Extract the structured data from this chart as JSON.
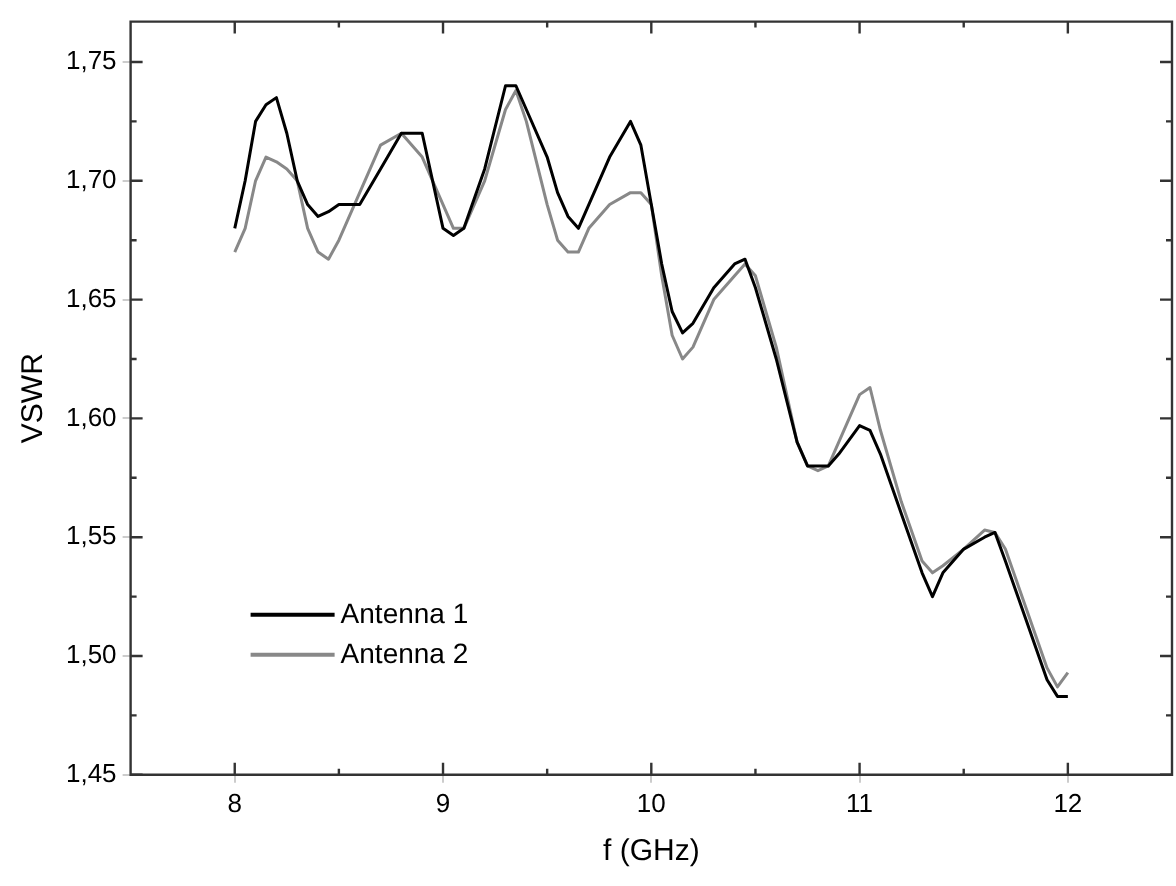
{
  "chart_data": {
    "type": "line",
    "xlabel": "f (GHz)",
    "ylabel": "VSWR",
    "x": [
      8.0,
      8.05,
      8.1,
      8.15,
      8.2,
      8.25,
      8.3,
      8.35,
      8.4,
      8.45,
      8.5,
      8.6,
      8.7,
      8.8,
      8.9,
      9.0,
      9.05,
      9.1,
      9.2,
      9.3,
      9.35,
      9.4,
      9.5,
      9.55,
      9.6,
      9.65,
      9.7,
      9.8,
      9.9,
      9.95,
      10.0,
      10.05,
      10.1,
      10.15,
      10.2,
      10.3,
      10.4,
      10.45,
      10.5,
      10.6,
      10.7,
      10.75,
      10.8,
      10.85,
      10.9,
      11.0,
      11.05,
      11.1,
      11.2,
      11.3,
      11.35,
      11.4,
      11.5,
      11.6,
      11.65,
      11.7,
      11.8,
      11.9,
      11.95,
      12.0
    ],
    "series": [
      {
        "name": "Antenna 1",
        "color": "#000000",
        "values": [
          1.68,
          1.7,
          1.725,
          1.732,
          1.735,
          1.72,
          1.7,
          1.69,
          1.685,
          1.687,
          1.69,
          1.69,
          1.705,
          1.72,
          1.72,
          1.68,
          1.677,
          1.68,
          1.705,
          1.74,
          1.74,
          1.73,
          1.71,
          1.695,
          1.685,
          1.68,
          1.69,
          1.71,
          1.725,
          1.715,
          1.69,
          1.665,
          1.645,
          1.636,
          1.64,
          1.655,
          1.665,
          1.667,
          1.655,
          1.625,
          1.59,
          1.58,
          1.58,
          1.58,
          1.585,
          1.597,
          1.595,
          1.585,
          1.56,
          1.535,
          1.525,
          1.535,
          1.545,
          1.55,
          1.552,
          1.54,
          1.515,
          1.49,
          1.483,
          1.483
        ]
      },
      {
        "name": "Antenna 2",
        "color": "#888888",
        "values": [
          1.67,
          1.68,
          1.7,
          1.71,
          1.708,
          1.705,
          1.7,
          1.68,
          1.67,
          1.667,
          1.675,
          1.695,
          1.715,
          1.72,
          1.71,
          1.69,
          1.68,
          1.68,
          1.7,
          1.73,
          1.738,
          1.725,
          1.69,
          1.675,
          1.67,
          1.67,
          1.68,
          1.69,
          1.695,
          1.695,
          1.69,
          1.66,
          1.635,
          1.625,
          1.63,
          1.65,
          1.66,
          1.665,
          1.66,
          1.63,
          1.59,
          1.58,
          1.578,
          1.58,
          1.59,
          1.61,
          1.613,
          1.595,
          1.565,
          1.54,
          1.535,
          1.538,
          1.545,
          1.553,
          1.552,
          1.545,
          1.52,
          1.495,
          1.487,
          1.493
        ]
      }
    ],
    "xlim": [
      7.5,
      12.5
    ],
    "xticks": [
      8,
      9,
      10,
      11,
      12
    ],
    "ylim": [
      1.45,
      1.767
    ],
    "yticks": [
      {
        "value": 1.45,
        "label": "1,45"
      },
      {
        "value": 1.5,
        "label": "1,50"
      },
      {
        "value": 1.55,
        "label": "1,55"
      },
      {
        "value": 1.6,
        "label": "1,60"
      },
      {
        "value": 1.65,
        "label": "1,65"
      },
      {
        "value": 1.7,
        "label": "1,70"
      },
      {
        "value": 1.75,
        "label": "1,75"
      }
    ],
    "grid": false,
    "legend": "bottom left",
    "marker": "none",
    "line_style": "solid"
  }
}
